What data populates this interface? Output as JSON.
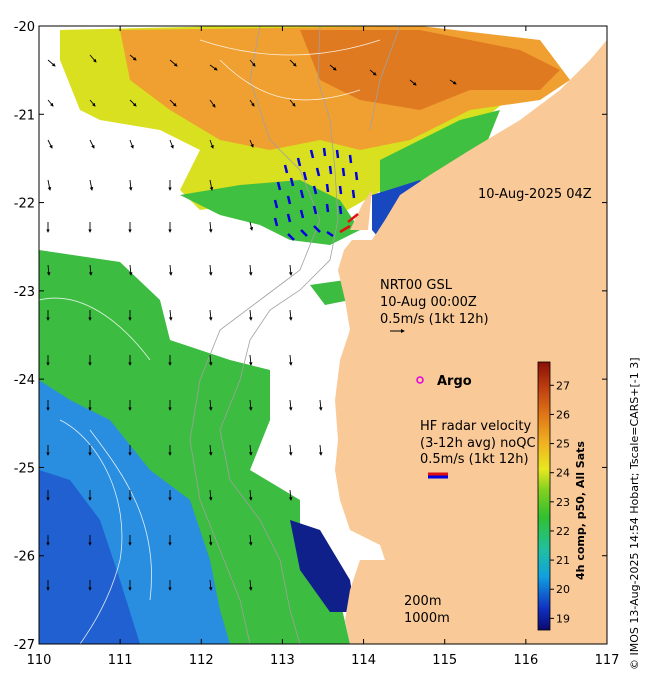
{
  "map": {
    "x_ticks": [
      "110",
      "111",
      "112",
      "113",
      "114",
      "115",
      "116",
      "117"
    ],
    "y_ticks": [
      "-20",
      "-21",
      "-22",
      "-23",
      "-24",
      "-25",
      "-26",
      "-27"
    ],
    "lon_range": [
      110,
      117
    ],
    "lat_range": [
      -27,
      -20
    ],
    "colors": {
      "land": "#fac998",
      "no_data": "#ffffff",
      "isobath": "#a0a0a0",
      "contour": "#ffffff",
      "argo_marker": "#e000e0",
      "hf_vectors": "#0000e0",
      "hf_vectors_shelf": "#e01010"
    }
  },
  "annotations": {
    "timestamp": "10-Aug-2025 04Z",
    "nrt_line1": "NRT00 GSL",
    "nrt_line2": "10-Aug 00:00Z",
    "nrt_line3": "0.5m/s (1kt 12h)",
    "argo_label": "Argo",
    "hf_line1": "HF radar velocity",
    "hf_line2": "(3-12h avg) noQC",
    "hf_line3": "0.5m/s (1kt 12h)",
    "isobath1": "200m",
    "isobath2": "1000m"
  },
  "colorbar": {
    "ticks": [
      "19",
      "20",
      "21",
      "22",
      "23",
      "24",
      "25",
      "26",
      "27"
    ],
    "label": "4h comp, p50, All Sats",
    "range": [
      18.6,
      27.8
    ]
  },
  "credit": "© IMOS 13-Aug-2025 14:54 Hobart; Tscale=CARS+[-1 3]"
}
